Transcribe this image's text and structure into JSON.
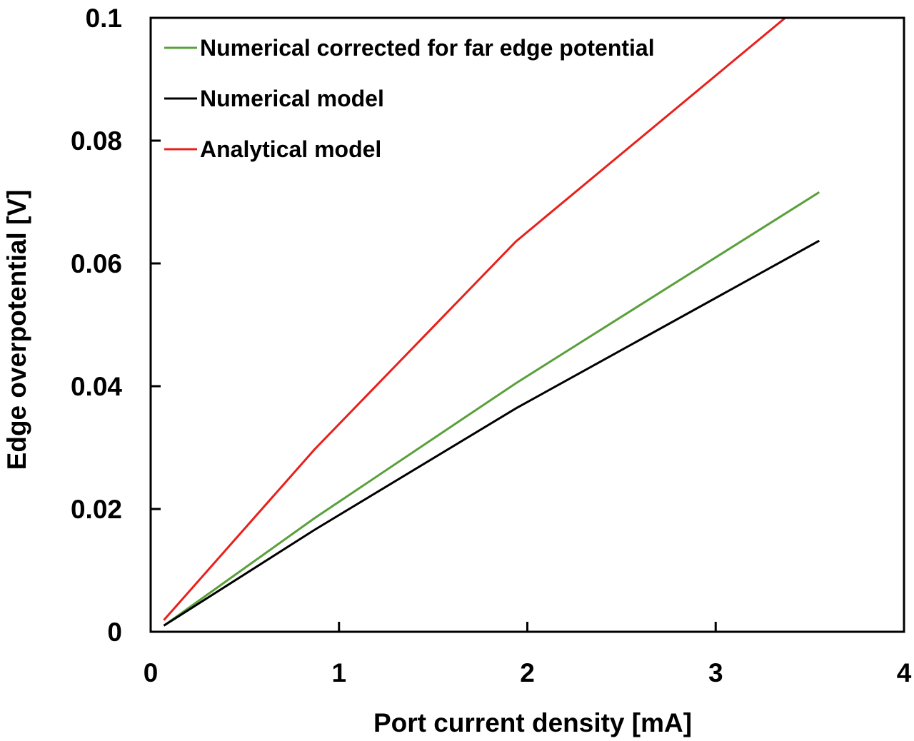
{
  "chart_data": {
    "type": "line",
    "title": "",
    "xlabel": "Port current density [mA]",
    "ylabel": "Edge overpotential [V]",
    "xlim": [
      0,
      4
    ],
    "ylim": [
      0,
      0.1
    ],
    "xticks": [
      "0",
      "1",
      "2",
      "3",
      "4"
    ],
    "xtick_values": [
      0,
      1,
      2,
      3,
      4
    ],
    "yticks": [
      "0",
      "0.02",
      "0.04",
      "0.06",
      "0.08",
      "0.1"
    ],
    "ytick_values": [
      0,
      0.02,
      0.04,
      0.06,
      0.08,
      0.1
    ],
    "grid": false,
    "legend_position": "top-left",
    "series": [
      {
        "name": "Numerical corrected for far edge potential",
        "color": "#5aa03c",
        "x": [
          0.07,
          0.87,
          1.94,
          3.55
        ],
        "y": [
          0.001,
          0.0185,
          0.0405,
          0.0716
        ]
      },
      {
        "name": "Numerical model",
        "color": "#000000",
        "x": [
          0.07,
          0.87,
          1.94,
          3.55
        ],
        "y": [
          0.001,
          0.0166,
          0.0364,
          0.0637
        ]
      },
      {
        "name": "Analytical model",
        "color": "#e8201c",
        "x": [
          0.07,
          0.87,
          1.94,
          3.55
        ],
        "y": [
          0.0019,
          0.0297,
          0.0636,
          0.1046
        ]
      }
    ]
  }
}
